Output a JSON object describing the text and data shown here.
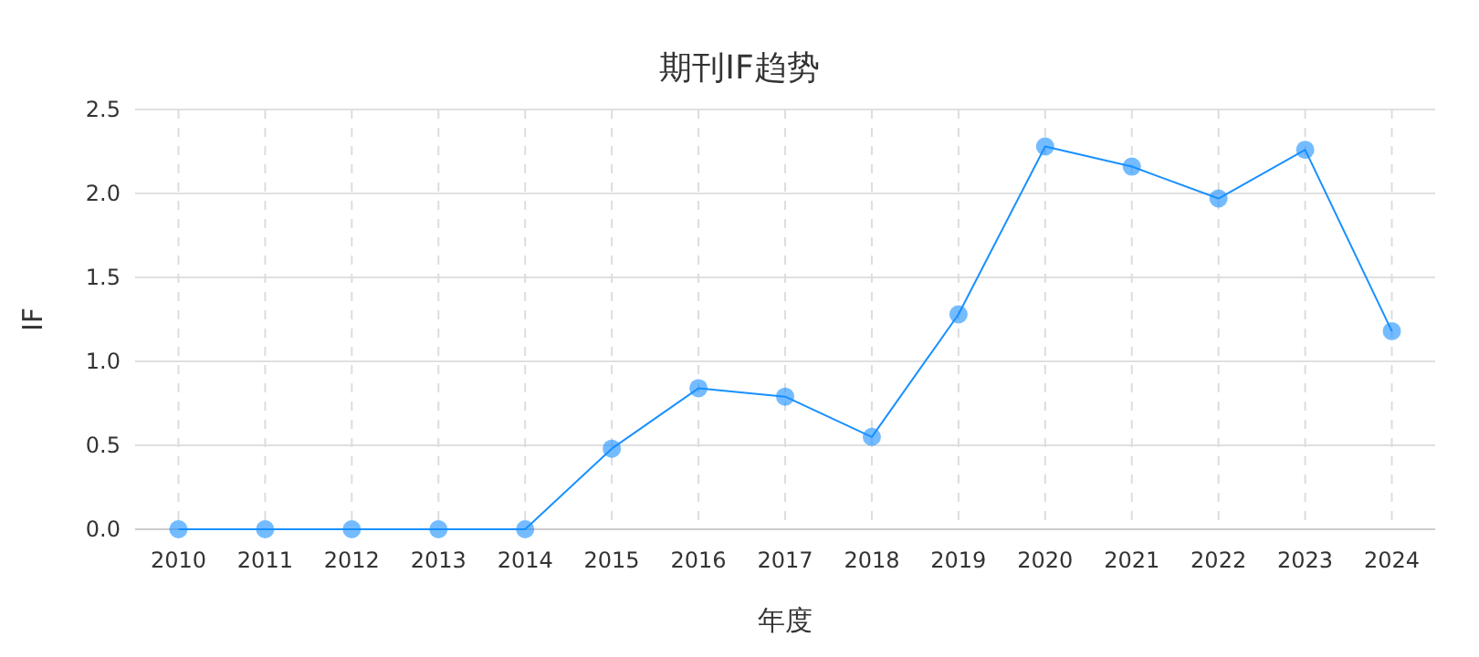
{
  "chart_data": {
    "type": "line",
    "title": "期刊IF趋势",
    "xlabel": "年度",
    "ylabel": "IF",
    "categories": [
      "2010",
      "2011",
      "2012",
      "2013",
      "2014",
      "2015",
      "2016",
      "2017",
      "2018",
      "2019",
      "2020",
      "2021",
      "2022",
      "2023",
      "2024"
    ],
    "series": [
      {
        "color": "#1890ff",
        "values": [
          0,
          0,
          0,
          0,
          0,
          0.48,
          0.84,
          0.79,
          0.55,
          1.28,
          2.28,
          2.16,
          1.97,
          2.26,
          1.18
        ]
      }
    ],
    "ylim": [
      0,
      2.5
    ],
    "yticks": [
      {
        "value": 0,
        "label": "0.0"
      },
      0.5,
      {
        "value": 1,
        "label": "1.0"
      },
      1.5,
      {
        "value": 2,
        "label": "2.0"
      },
      2.5
    ],
    "grid": true,
    "marker": "circle",
    "line_style": "solid"
  }
}
